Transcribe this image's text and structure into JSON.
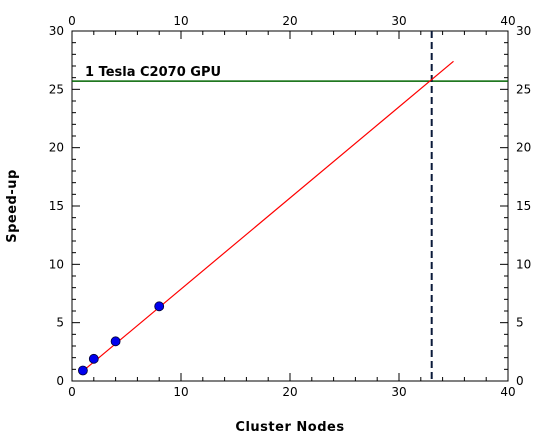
{
  "chart_data": {
    "type": "scatter",
    "xlabel": "Cluster Nodes",
    "ylabel": "Speed-up",
    "xlim": [
      0,
      40
    ],
    "ylim": [
      0,
      30
    ],
    "x_ticks": [
      0,
      10,
      20,
      30,
      40
    ],
    "y_ticks": [
      0,
      5,
      10,
      15,
      20,
      25,
      30
    ],
    "x_minor_step": 2,
    "y_minor_step": 1,
    "mirror_axes": true,
    "grid": false,
    "series": [
      {
        "kind": "points",
        "color": "#0000ee",
        "points": [
          {
            "x": 1,
            "y": 0.9
          },
          {
            "x": 2,
            "y": 1.9
          },
          {
            "x": 4,
            "y": 3.4
          },
          {
            "x": 8,
            "y": 6.4
          }
        ]
      },
      {
        "kind": "fit-line",
        "color": "#ff0000",
        "points": [
          {
            "x": 1,
            "y": 0.85
          },
          {
            "x": 35,
            "y": 27.4
          }
        ]
      }
    ],
    "annotations": [
      {
        "kind": "hline",
        "y": 25.7,
        "color": "#006400",
        "label": "1 Tesla C2070 GPU"
      },
      {
        "kind": "vline",
        "x": 33,
        "color": "#0a1a3a",
        "style": "dashed"
      }
    ]
  }
}
